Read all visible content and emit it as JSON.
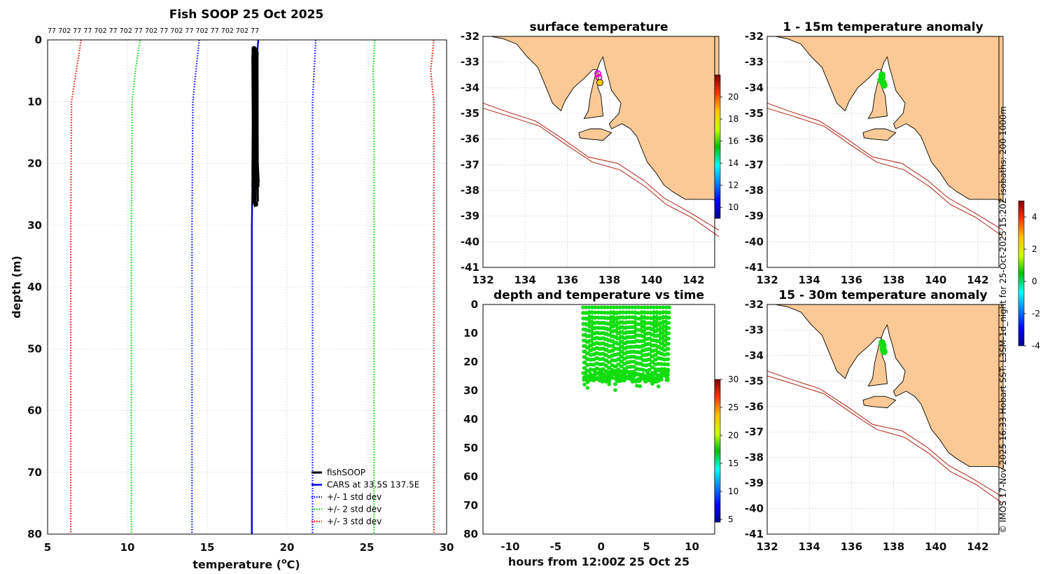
{
  "colors": {
    "fishsoop": "#000000",
    "cars": "#0000dd",
    "std1": "#0000ff",
    "std2": "#00dd00",
    "std3": "#ee1100",
    "land": "#fbc995",
    "isobath": "#b02010",
    "obs_point": "#11dd11"
  },
  "chart_data": [
    {
      "type": "line",
      "name": "profile",
      "title": "Fish SOOP 25 Oct 2025",
      "top_label_text": "77 702 77 77 702 77 702 77 702 77 702 77 702 77 702 702 77",
      "xlabel": "temperature (",
      "xlabel_sup": "o",
      "xlabel_end": "C)",
      "ylabel": "depth (m)",
      "xlim": [
        5,
        30
      ],
      "ylim": [
        80,
        0
      ],
      "xticks": [
        5,
        10,
        15,
        20,
        25,
        30
      ],
      "yticks": [
        0,
        10,
        20,
        30,
        40,
        50,
        60,
        70,
        80
      ],
      "series": [
        {
          "name": "CARS at 33.5S 137.5E",
          "style": "solid",
          "color_key": "cars",
          "points": [
            [
              18.2,
              0
            ],
            [
              18.1,
              3
            ],
            [
              17.85,
              20
            ],
            [
              17.8,
              30
            ],
            [
              17.8,
              80
            ]
          ]
        },
        {
          "name": "+/- 1 std dev",
          "style": "dotted",
          "color_key": "std1",
          "points": [
            [
              14.5,
              0
            ],
            [
              14.3,
              5
            ],
            [
              14.1,
              10
            ],
            [
              14.05,
              30
            ],
            [
              14.05,
              80
            ]
          ]
        },
        {
          "name": "+/- 1 std dev",
          "style": "dotted",
          "color_key": "std1",
          "no_legend": true,
          "points": [
            [
              21.8,
              0
            ],
            [
              21.7,
              5
            ],
            [
              21.6,
              10
            ],
            [
              21.6,
              30
            ],
            [
              21.6,
              80
            ]
          ]
        },
        {
          "name": "+/- 2 std dev",
          "style": "dotted",
          "color_key": "std2",
          "points": [
            [
              10.8,
              0
            ],
            [
              10.5,
              5
            ],
            [
              10.3,
              10
            ],
            [
              10.25,
              30
            ],
            [
              10.25,
              80
            ]
          ]
        },
        {
          "name": "+/- 2 std dev",
          "style": "dotted",
          "color_key": "std2",
          "no_legend": true,
          "points": [
            [
              25.5,
              0
            ],
            [
              25.4,
              5
            ],
            [
              25.45,
              10
            ],
            [
              25.45,
              30
            ],
            [
              25.45,
              80
            ]
          ]
        },
        {
          "name": "+/- 3 std dev",
          "style": "dotted",
          "color_key": "std3",
          "points": [
            [
              7.1,
              0
            ],
            [
              6.8,
              5
            ],
            [
              6.5,
              10
            ],
            [
              6.45,
              30
            ],
            [
              6.45,
              80
            ]
          ]
        },
        {
          "name": "+/- 3 std dev",
          "style": "dotted",
          "color_key": "std3",
          "no_legend": true,
          "points": [
            [
              29.2,
              0
            ],
            [
              29.0,
              5
            ],
            [
              29.2,
              10
            ],
            [
              29.2,
              30
            ],
            [
              29.2,
              80
            ]
          ]
        }
      ],
      "fishsoop": {
        "name": "fishSOOP",
        "temp_range": [
          17.8,
          18.3
        ],
        "depth_range": [
          1,
          30
        ]
      },
      "legend": [
        "fishSOOP",
        "CARS at 33.5S 137.5E",
        "+/- 1 std dev",
        "+/- 2 std dev",
        "+/- 3 std dev"
      ],
      "legend_position": "bottom-right"
    },
    {
      "type": "map",
      "name": "surface",
      "title": "surface temperature",
      "xlim": [
        132,
        143
      ],
      "ylim": [
        -41,
        -32
      ],
      "xticks": [
        132,
        134,
        136,
        138,
        140,
        142
      ],
      "yticks": [
        -32,
        -33,
        -34,
        -35,
        -36,
        -37,
        -38,
        -39,
        -40,
        -41
      ],
      "points": [
        {
          "lon": 137.45,
          "lat": -33.45,
          "ring": "#ff00ff"
        },
        {
          "lon": 137.5,
          "lat": -33.6,
          "ring": "#dd1199"
        },
        {
          "lon": 137.55,
          "lat": -33.8,
          "fill": "#f5c800"
        }
      ],
      "colorbar": {
        "min": 9,
        "max": 22,
        "ticks": [
          10,
          12,
          14,
          16,
          18,
          20
        ],
        "position": "right"
      }
    },
    {
      "type": "map",
      "name": "anom1",
      "title": "1 - 15m temperature anomaly",
      "xlim": [
        132,
        143
      ],
      "ylim": [
        -41,
        -32
      ],
      "xticks": [
        132,
        134,
        136,
        138,
        140,
        142
      ],
      "yticks": [
        -32,
        -33,
        -34,
        -35,
        -36,
        -37,
        -38,
        -39,
        -40,
        -41
      ],
      "points": [
        {
          "lon": 137.45,
          "lat": -33.5
        },
        {
          "lon": 137.45,
          "lat": -33.6
        },
        {
          "lon": 137.4,
          "lat": -33.7
        },
        {
          "lon": 137.5,
          "lat": -33.8
        },
        {
          "lon": 137.55,
          "lat": -33.9
        }
      ],
      "colorbar": {
        "min": -4,
        "max": 5,
        "ticks": [
          -4,
          -2,
          0,
          2,
          4
        ],
        "position": "right"
      }
    },
    {
      "type": "map",
      "name": "anom2",
      "title": "15 - 30m temperature anomaly",
      "xlim": [
        132,
        143
      ],
      "ylim": [
        -41,
        -32
      ],
      "xticks": [
        132,
        134,
        136,
        138,
        140,
        142
      ],
      "yticks": [
        -32,
        -33,
        -34,
        -35,
        -36,
        -37,
        -38,
        -39,
        -40,
        -41
      ],
      "points": [
        {
          "lon": 137.45,
          "lat": -33.5
        },
        {
          "lon": 137.5,
          "lat": -33.6
        },
        {
          "lon": 137.5,
          "lat": -33.75
        },
        {
          "lon": 137.55,
          "lat": -33.85
        }
      ]
    },
    {
      "type": "scatter",
      "name": "timedepth",
      "title": "depth and temperature vs time",
      "xlabel": "hours from 12:00Z 25 Oct 25",
      "xlim": [
        -13,
        12.5
      ],
      "ylim": [
        80,
        0
      ],
      "xticks": [
        -10,
        -5,
        0,
        5,
        10
      ],
      "yticks": [
        0,
        10,
        20,
        30,
        40,
        50,
        60,
        70,
        80
      ],
      "time_range": [
        -2,
        7.5
      ],
      "depth_top": 1,
      "depth_bottom": [
        24,
        30
      ],
      "dives": 28,
      "colorbar": {
        "min": 4.5,
        "max": 30,
        "ticks": [
          5,
          10,
          15,
          20,
          25,
          30
        ],
        "position": "right"
      }
    }
  ],
  "side_text": "© IMOS 17-Nov-2025 16:33 Hobart SST: L3SM-1d_night for 25-Oct-2025 15:20Z isobaths: 200  1000m"
}
